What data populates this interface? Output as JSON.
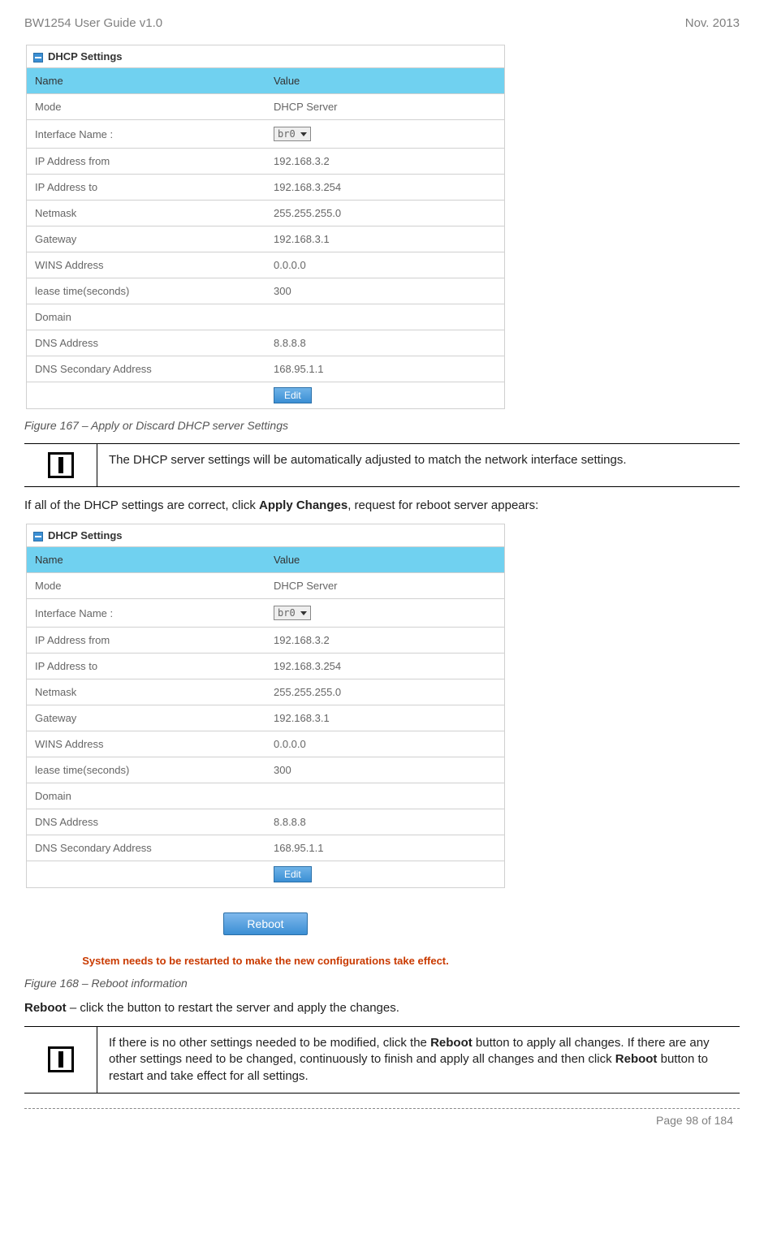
{
  "header": {
    "left": "BW1254 User Guide v1.0",
    "right": "Nov.  2013"
  },
  "dhcp_table": {
    "title": "DHCP Settings",
    "header_name": "Name",
    "header_value": "Value",
    "rows": [
      {
        "name": "Mode",
        "value": "DHCP Server",
        "type": "text"
      },
      {
        "name": "Interface Name :",
        "value": "br0",
        "type": "select"
      },
      {
        "name": "IP Address from",
        "value": "192.168.3.2",
        "type": "text"
      },
      {
        "name": "IP Address to",
        "value": "192.168.3.254",
        "type": "text"
      },
      {
        "name": "Netmask",
        "value": "255.255.255.0",
        "type": "text"
      },
      {
        "name": "Gateway",
        "value": "192.168.3.1",
        "type": "text"
      },
      {
        "name": "WINS Address",
        "value": "0.0.0.0",
        "type": "text"
      },
      {
        "name": "lease time(seconds)",
        "value": "300",
        "type": "text"
      },
      {
        "name": "Domain",
        "value": "",
        "type": "text"
      },
      {
        "name": "DNS Address",
        "value": "8.8.8.8",
        "type": "text"
      },
      {
        "name": "DNS Secondary Address",
        "value": "168.95.1.1",
        "type": "text"
      }
    ],
    "edit_label": "Edit"
  },
  "fig167_caption": "Figure 167 – Apply or Discard DHCP server Settings",
  "info1_text": "The DHCP server settings will be automatically adjusted to match the network interface settings.",
  "mid_text_pre": "If all of the DHCP settings are correct, click ",
  "mid_text_bold": "Apply Changes",
  "mid_text_post": ", request for reboot server appears:",
  "reboot": {
    "button_label": "Reboot",
    "message": "System needs to be restarted to make the new configurations take effect."
  },
  "fig168_caption": "Figure 168 – Reboot information",
  "reboot_line_bold": "Reboot",
  "reboot_line_rest": " – click the button to restart the server and apply the changes.",
  "info2_pre": "If there is no other settings needed to be modified, click the ",
  "info2_b1": "Reboot",
  "info2_mid": " button to apply all changes. If there are any other settings need to be changed, continuously to finish and apply all changes and then click ",
  "info2_b2": "Reboot",
  "info2_post": " button to restart and take effect  for all settings.",
  "footer": "Page 98 of 184"
}
